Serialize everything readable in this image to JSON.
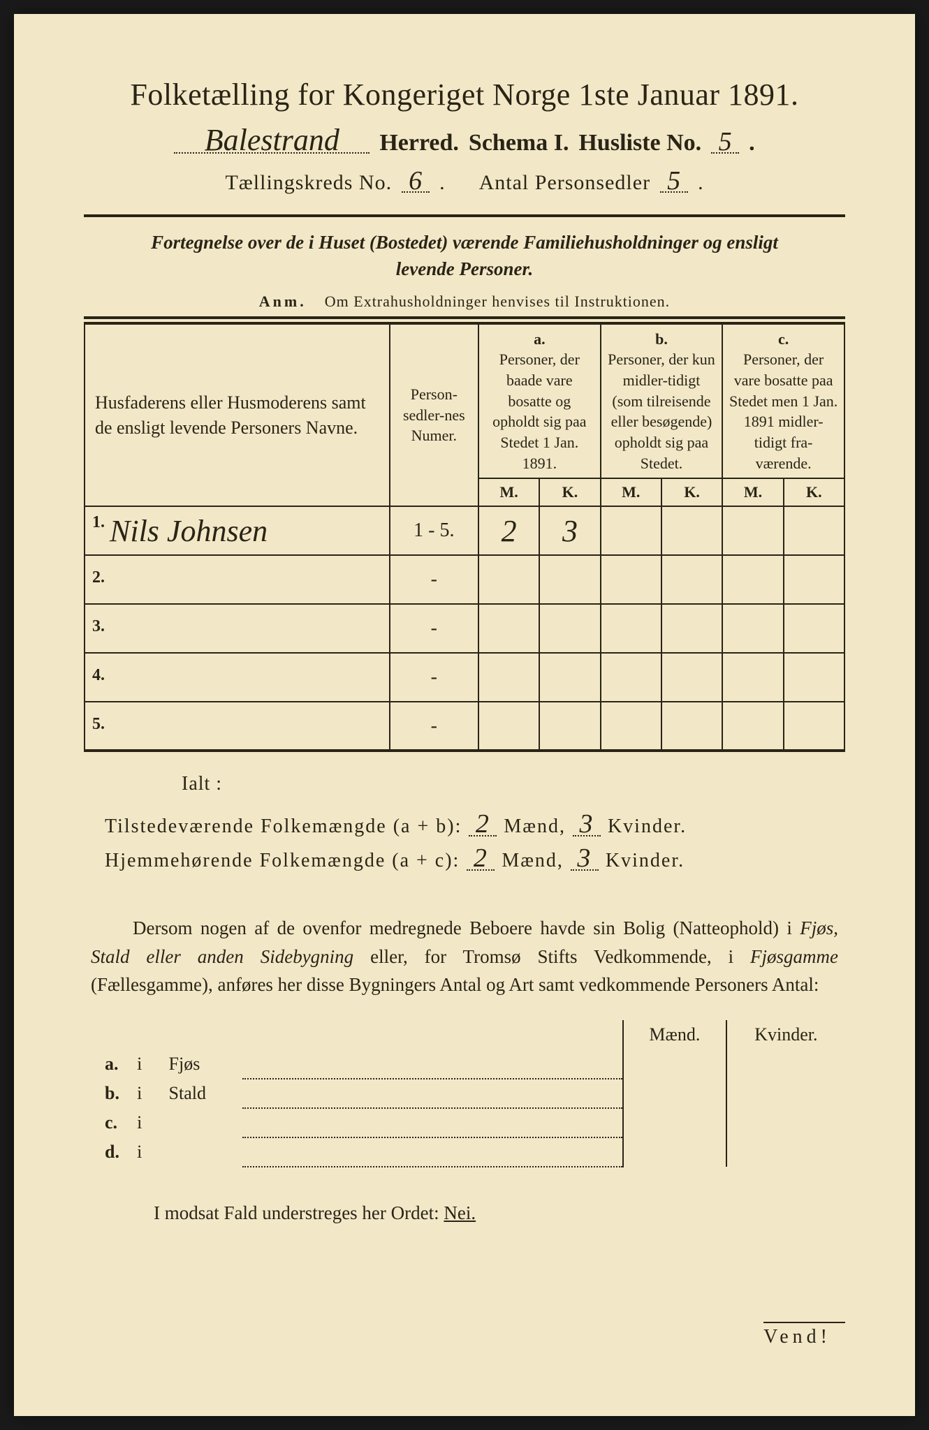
{
  "colors": {
    "paper_bg": "#f2e8c8",
    "ink": "#2a2416",
    "page_border": "#1a1a1a"
  },
  "title": "Folketælling for Kongeriget Norge 1ste Januar 1891.",
  "header": {
    "herred_hw": "Balestrand",
    "herred_label": "Herred.",
    "schema_label": "Schema I.",
    "husliste_label": "Husliste No.",
    "husliste_no": "5",
    "kreds_label": "Tællingskreds No.",
    "kreds_no": "6",
    "antal_label": "Antal Personsedler",
    "antal_no": "5"
  },
  "subtitle": {
    "line1_a": "Fortegnelse over de i Huset (Bostedet) værende Familiehusholdninger og ensligt",
    "line2": "levende Personer.",
    "anm_label": "Anm.",
    "anm_text": "Om Extrahusholdninger henvises til Instruktionen."
  },
  "table": {
    "col1_header": "Husfaderens eller Husmoderens samt de ensligt levende Personers Navne.",
    "col2_header": "Person-sedler-nes Numer.",
    "col_a_label": "a.",
    "col_a_header": "Personer, der baade vare bosatte og opholdt sig paa Stedet 1 Jan. 1891.",
    "col_b_label": "b.",
    "col_b_header": "Personer, der kun midler-tidigt (som tilreisende eller besøgende) opholdt sig paa Stedet.",
    "col_c_label": "c.",
    "col_c_header": "Personer, der vare bosatte paa Stedet men 1 Jan. 1891 midler-tidigt fra-værende.",
    "M": "M.",
    "K": "K.",
    "rows": [
      {
        "num": "1.",
        "name": "Nils Johnsen",
        "pers": "1 - 5.",
        "aM": "2",
        "aK": "3",
        "bM": "",
        "bK": "",
        "cM": "",
        "cK": ""
      },
      {
        "num": "2.",
        "name": "",
        "pers": "-",
        "aM": "",
        "aK": "",
        "bM": "",
        "bK": "",
        "cM": "",
        "cK": ""
      },
      {
        "num": "3.",
        "name": "",
        "pers": "-",
        "aM": "",
        "aK": "",
        "bM": "",
        "bK": "",
        "cM": "",
        "cK": ""
      },
      {
        "num": "4.",
        "name": "",
        "pers": "-",
        "aM": "",
        "aK": "",
        "bM": "",
        "bK": "",
        "cM": "",
        "cK": ""
      },
      {
        "num": "5.",
        "name": "",
        "pers": "-",
        "aM": "",
        "aK": "",
        "bM": "",
        "bK": "",
        "cM": "",
        "cK": ""
      }
    ]
  },
  "totals": {
    "ialt": "Ialt :",
    "line1_label": "Tilstedeværende Folkemængde (a + b):",
    "line1_m": "2",
    "line1_k": "3",
    "line2_label": "Hjemmehørende Folkemængde (a + c):",
    "line2_m": "2",
    "line2_k": "3",
    "maend": "Mænd,",
    "kvinder": "Kvinder."
  },
  "para": {
    "text1": "Dersom nogen af de ovenfor medregnede Beboere havde sin Bolig (Natteophold) i ",
    "it1": "Fjøs, Stald eller anden Sidebygning",
    "text2": " eller, for Tromsø Stifts Vedkommende, i ",
    "it2": "Fjøsgamme",
    "text3": " (Fællesgamme), anføres her disse Bygningers Antal og Art samt vedkommende Personers Antal:"
  },
  "mk": {
    "maend": "Mænd.",
    "kvinder": "Kvinder.",
    "rows": [
      {
        "lbl": "a.",
        "i": "i",
        "name": "Fjøs"
      },
      {
        "lbl": "b.",
        "i": "i",
        "name": "Stald"
      },
      {
        "lbl": "c.",
        "i": "i",
        "name": ""
      },
      {
        "lbl": "d.",
        "i": "i",
        "name": ""
      }
    ]
  },
  "modsat": {
    "text": "I modsat Fald understreges her Ordet: ",
    "nei": "Nei."
  },
  "vend": "Vend!"
}
